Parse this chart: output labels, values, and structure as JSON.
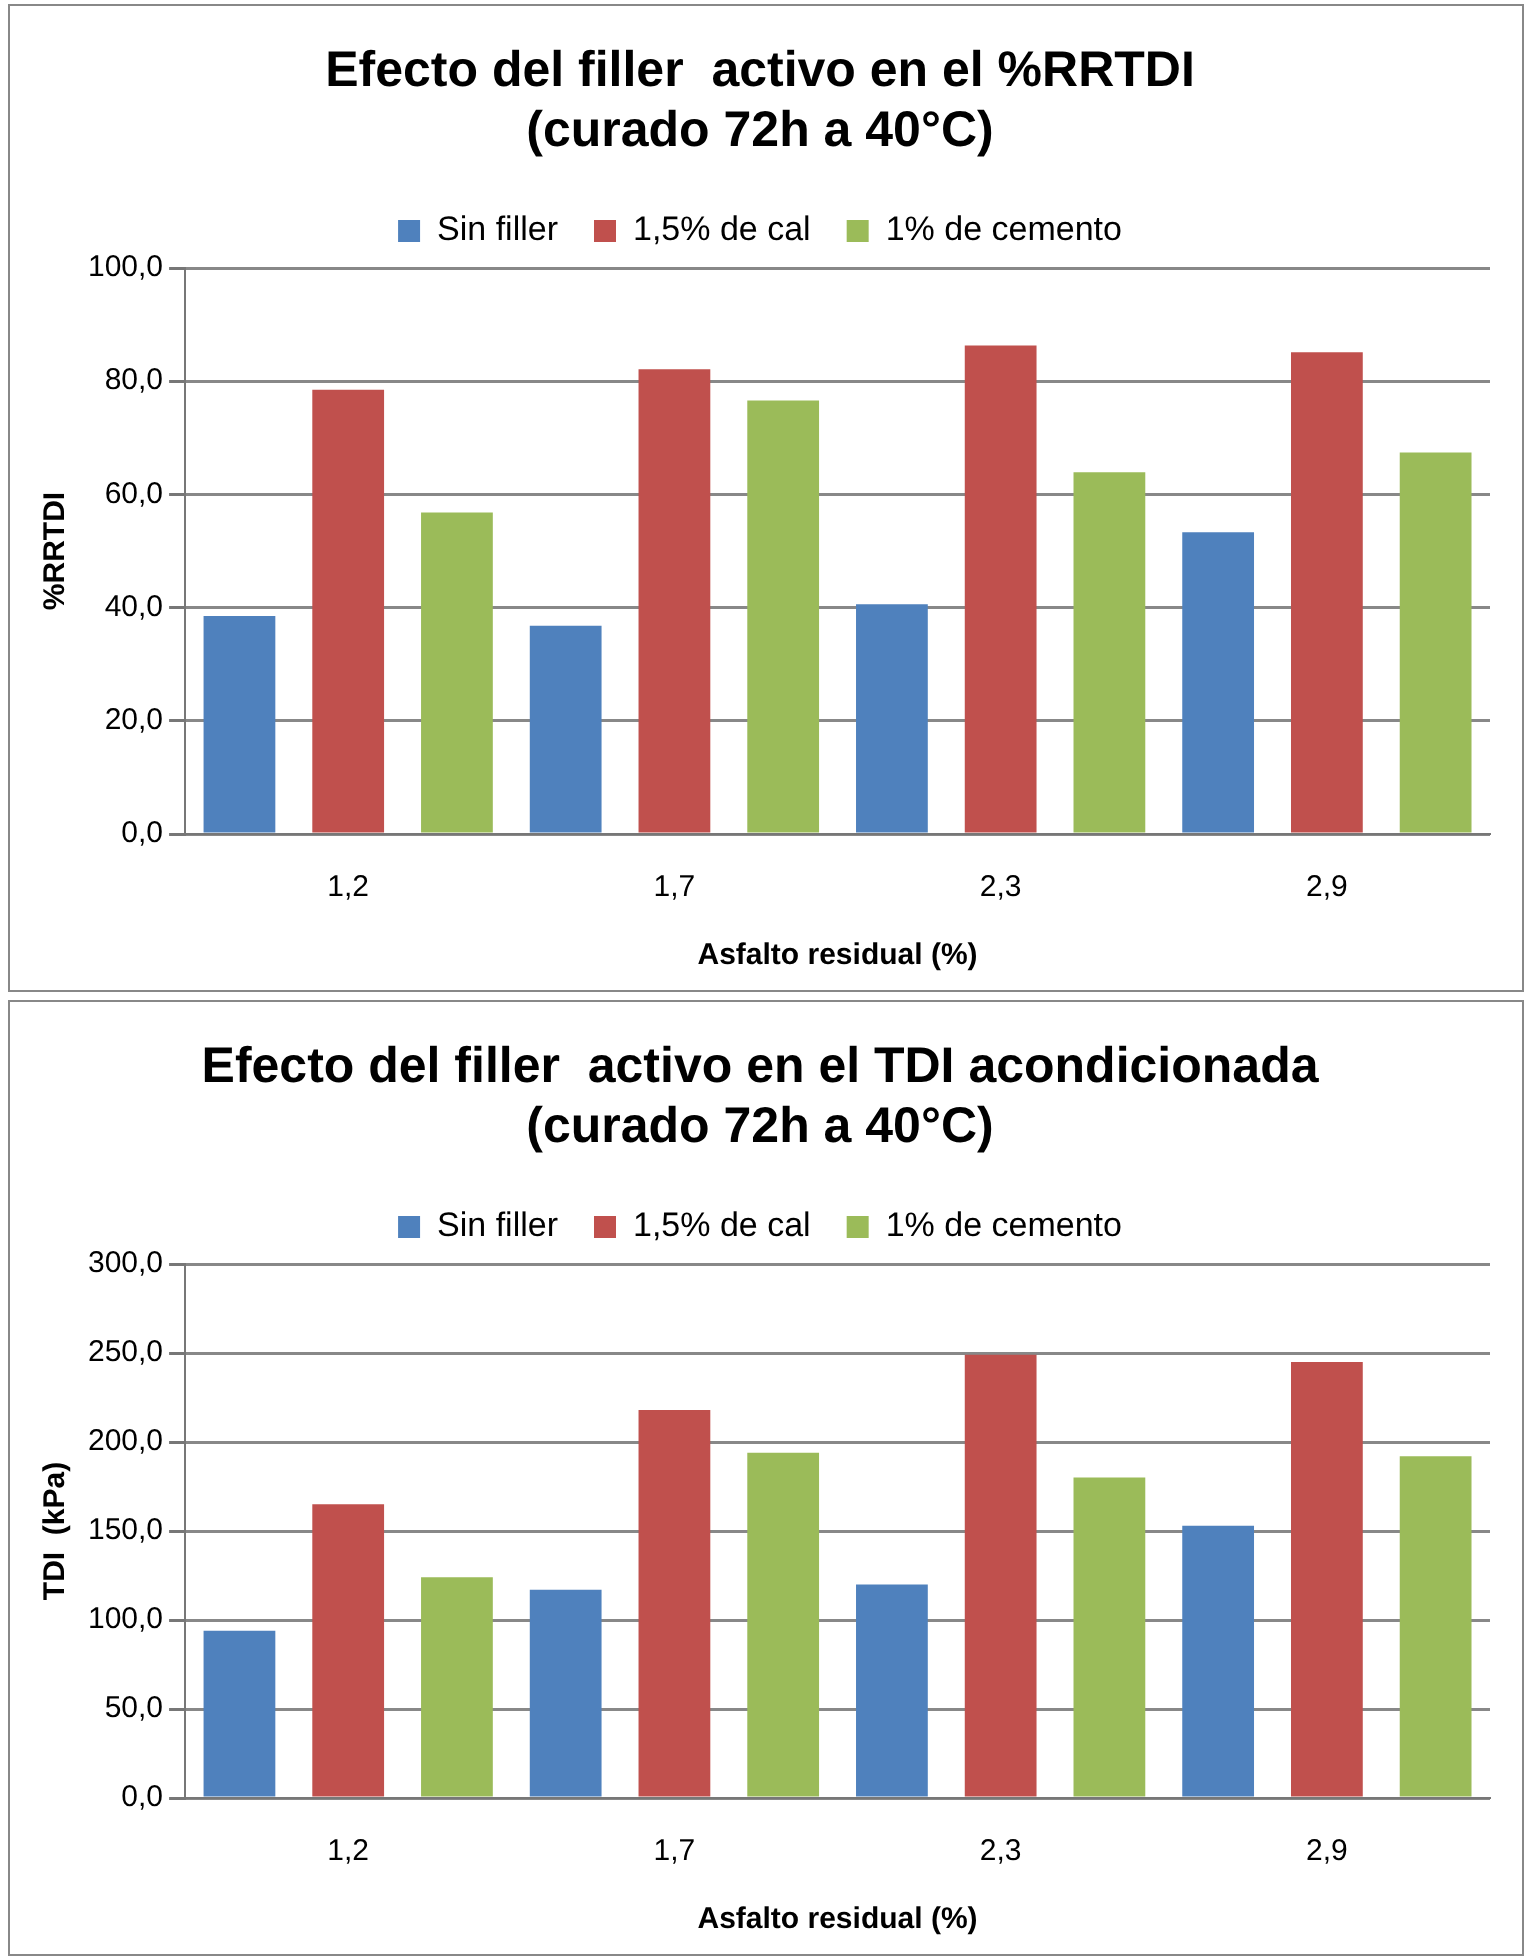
{
  "chart_data": [
    {
      "type": "bar",
      "title": [
        "Efecto del filler  activo en el %RRTDI",
        "(curado 72h a 40°C)"
      ],
      "xlabel": "Asfalto residual (%)",
      "ylabel": "%RRTDI",
      "categories": [
        "1,2",
        "1,7",
        "2,3",
        "2,9"
      ],
      "series": [
        {
          "name": "Sin filler",
          "color": "#4f81bd",
          "values": [
            38.5,
            36.8,
            40.6,
            53.3
          ]
        },
        {
          "name": "1,5% de cal",
          "color": "#c0504d",
          "values": [
            78.5,
            82.1,
            86.3,
            85.1
          ]
        },
        {
          "name": "1% de cemento",
          "color": "#9bbb59",
          "values": [
            56.8,
            76.6,
            63.9,
            67.4
          ]
        }
      ],
      "ylim": [
        0,
        100
      ],
      "yticks": [
        {
          "value": 0,
          "label": "0,0"
        },
        {
          "value": 20,
          "label": "20,0"
        },
        {
          "value": 40,
          "label": "40,0"
        },
        {
          "value": 60,
          "label": "60,0"
        },
        {
          "value": 80,
          "label": "80,0"
        },
        {
          "value": 100,
          "label": "100,0"
        }
      ],
      "grid": "y",
      "legend": "top"
    },
    {
      "type": "bar",
      "title": [
        "Efecto del filler  activo en el TDI acondicionada",
        "(curado 72h a 40°C)"
      ],
      "xlabel": "Asfalto residual (%)",
      "ylabel": "TDI  (kPa)",
      "categories": [
        "1,2",
        "1,7",
        "2,3",
        "2,9"
      ],
      "series": [
        {
          "name": "Sin filler",
          "color": "#4f81bd",
          "values": [
            94,
            117,
            120,
            153
          ]
        },
        {
          "name": "1,5% de cal",
          "color": "#c0504d",
          "values": [
            165,
            218,
            249,
            245
          ]
        },
        {
          "name": "1% de cemento",
          "color": "#9bbb59",
          "values": [
            124,
            194,
            180,
            192
          ]
        }
      ],
      "ylim": [
        0,
        300
      ],
      "yticks": [
        {
          "value": 0,
          "label": "0,0"
        },
        {
          "value": 50,
          "label": "50,0"
        },
        {
          "value": 100,
          "label": "100,0"
        },
        {
          "value": 150,
          "label": "150,0"
        },
        {
          "value": 200,
          "label": "200,0"
        },
        {
          "value": 250,
          "label": "250,0"
        },
        {
          "value": 300,
          "label": "300,0"
        }
      ],
      "grid": "y",
      "legend": "top"
    }
  ]
}
